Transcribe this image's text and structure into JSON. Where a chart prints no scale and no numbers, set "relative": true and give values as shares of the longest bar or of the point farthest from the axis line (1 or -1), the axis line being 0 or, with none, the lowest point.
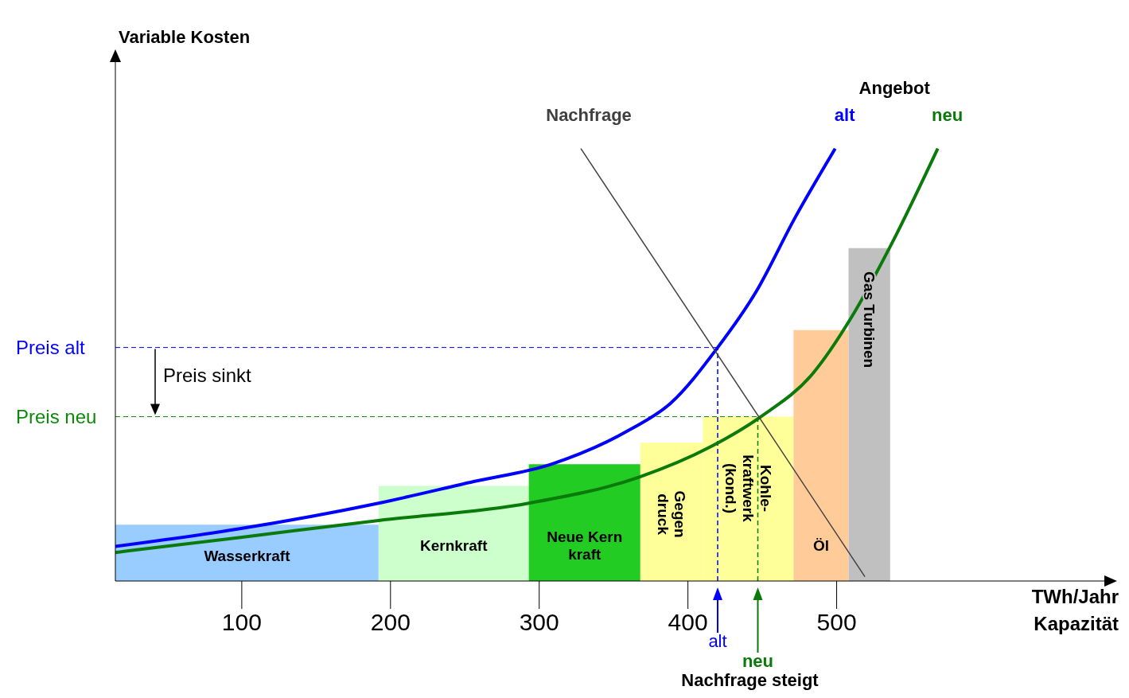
{
  "chart_data": {
    "type": "histogram",
    "relative": true,
    "xlabel": "TWh/Jahr Kapazität",
    "bins": [
      15,
      192,
      293,
      368,
      410,
      471,
      508,
      536
    ],
    "values": [
      0.13,
      0.22,
      0.27,
      0.32,
      0.38,
      0.58,
      0.77
    ],
    "colors": [
      "#99ccff",
      "#ccffcc",
      "#22cc22",
      "#ffff99",
      "#ffff99",
      "#ffcc99",
      "#c0c0c0"
    ],
    "xlim": [
      15,
      680
    ],
    "xticks": [
      100,
      200,
      300,
      400,
      500
    ],
    "series": [
      {
        "name": "alt",
        "type": "line",
        "color": "#0000ff",
        "x": [
          15,
          97,
          192,
          256,
          308,
          361,
          388,
          420,
          446,
          472,
          499
        ],
        "values": [
          0.08,
          0.12,
          0.18,
          0.23,
          0.27,
          0.35,
          0.41,
          0.54,
          0.67,
          0.84,
          1.0
        ]
      },
      {
        "name": "neu",
        "type": "line",
        "color": "#0a7a0a",
        "x": [
          15,
          97,
          192,
          293,
          367,
          415,
          449,
          484,
          510,
          537,
          568
        ],
        "values": [
          0.066,
          0.1,
          0.14,
          0.18,
          0.24,
          0.31,
          0.38,
          0.48,
          0.61,
          0.78,
          1.0
        ]
      },
      {
        "name": "Nachfrage",
        "type": "line",
        "color": "#404040",
        "x": [
          328,
          519
        ],
        "values": [
          1.0,
          0.01
        ]
      }
    ],
    "ref_lines": [
      {
        "axis": "y",
        "value": 0.54,
        "label": "Preis alt",
        "color": "#0000ff",
        "line_style": "dashed"
      },
      {
        "axis": "y",
        "value": 0.38,
        "label": "Preis neu",
        "color": "#0a8a0a",
        "line_style": "dashed"
      },
      {
        "axis": "x",
        "value": 420,
        "label": "alt",
        "color": "#0000ff",
        "line_style": "dashed"
      },
      {
        "axis": "x",
        "value": 447,
        "label": "neu",
        "color": "#0a7a0a",
        "line_style": "dashed"
      }
    ],
    "annotations": [
      "Angebot",
      "Preis sinkt",
      "Nachfrage steigt",
      "Variable Kosten",
      "Wasserkraft",
      "Kernkraft",
      "Neue Kern kraft",
      "Gegen druck",
      "Kohle- kraftwerk (kond.)",
      "Öl",
      "Gas Turbinen"
    ]
  }
}
